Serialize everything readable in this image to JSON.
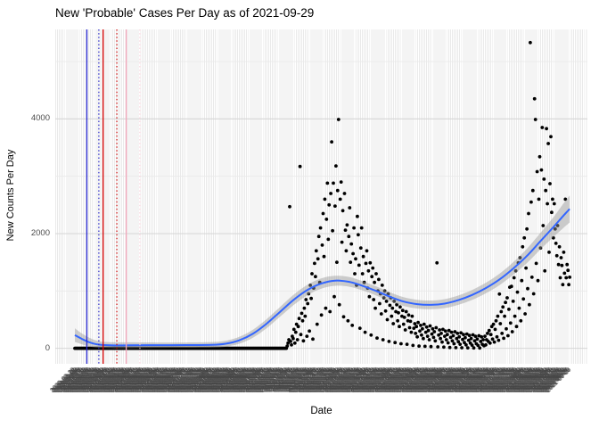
{
  "title": "New 'Probable' Cases Per Day as of 2021-09-29",
  "axes": {
    "x_title": "Date",
    "y_title": "New Counts Per Day",
    "y_ticks": [
      0,
      2000,
      4000
    ],
    "y_minor_gridlines": [
      1000,
      3000,
      5000
    ],
    "y_range": [
      -270,
      5560
    ],
    "x_start_date": "2020-02-28",
    "x_end_date": "2021-09-29",
    "x_num_days": 581,
    "x_tick_label_angle": 45,
    "x_tick_label_frequency": "daily"
  },
  "style_colors": {
    "point": "#000000",
    "smooth_line": "#3366FF",
    "ribbon": "rgba(150,150,150,0.45)",
    "grid_major": "#d6d6d6",
    "grid_minor": "#e9e9e9",
    "axis_text": "#4d4d4d",
    "tick_label_text": "#474747",
    "title_text": "#000000"
  },
  "chart_data": {
    "type": "scatter",
    "description": "New probable COVID-19 cases per day (one black point per date) with loess smooth fit and confidence ribbon, plus vertical reference lines in early 2020.",
    "zero_run_days": [
      0,
      247
    ],
    "points": [
      [
        248,
        40
      ],
      [
        249,
        90
      ],
      [
        250,
        150
      ],
      [
        251,
        2470
      ],
      [
        252,
        120
      ],
      [
        253,
        60
      ],
      [
        254,
        210
      ],
      [
        255,
        170
      ],
      [
        256,
        330
      ],
      [
        257,
        90
      ],
      [
        258,
        280
      ],
      [
        259,
        420
      ],
      [
        260,
        150
      ],
      [
        261,
        380
      ],
      [
        262,
        520
      ],
      [
        263,
        3170
      ],
      [
        264,
        240
      ],
      [
        265,
        610
      ],
      [
        266,
        480
      ],
      [
        267,
        130
      ],
      [
        268,
        700
      ],
      [
        269,
        560
      ],
      [
        270,
        850
      ],
      [
        271,
        210
      ],
      [
        272,
        780
      ],
      [
        273,
        950
      ],
      [
        274,
        300
      ],
      [
        275,
        1100
      ],
      [
        276,
        870
      ],
      [
        277,
        1300
      ],
      [
        278,
        160
      ],
      [
        279,
        1050
      ],
      [
        280,
        1480
      ],
      [
        281,
        1250
      ],
      [
        282,
        1700
      ],
      [
        283,
        420
      ],
      [
        284,
        1560
      ],
      [
        285,
        1950
      ],
      [
        286,
        1150
      ],
      [
        287,
        2100
      ],
      [
        288,
        580
      ],
      [
        289,
        1800
      ],
      [
        290,
        2350
      ],
      [
        291,
        1600
      ],
      [
        292,
        2600
      ],
      [
        293,
        700
      ],
      [
        294,
        2250
      ],
      [
        295,
        2880
      ],
      [
        296,
        1900
      ],
      [
        297,
        2500
      ],
      [
        298,
        640
      ],
      [
        299,
        2700
      ],
      [
        300,
        3600
      ],
      [
        301,
        2050
      ],
      [
        302,
        2880
      ],
      [
        303,
        900
      ],
      [
        304,
        2480
      ],
      [
        305,
        3180
      ],
      [
        306,
        1500
      ],
      [
        307,
        2750
      ],
      [
        308,
        3990
      ],
      [
        309,
        760
      ],
      [
        310,
        2600
      ],
      [
        311,
        2900
      ],
      [
        312,
        1850
      ],
      [
        313,
        2400
      ],
      [
        314,
        550
      ],
      [
        315,
        2700
      ],
      [
        316,
        2060
      ],
      [
        317,
        1700
      ],
      [
        318,
        2150
      ],
      [
        319,
        480
      ],
      [
        320,
        1950
      ],
      [
        321,
        2450
      ],
      [
        322,
        1500
      ],
      [
        323,
        1820
      ],
      [
        324,
        400
      ],
      [
        325,
        1650
      ],
      [
        326,
        2100
      ],
      [
        327,
        1300
      ],
      [
        328,
        1560
      ],
      [
        329,
        1100
      ],
      [
        330,
        2300
      ],
      [
        331,
        1980
      ],
      [
        332,
        1450
      ],
      [
        333,
        350
      ],
      [
        334,
        1750
      ],
      [
        335,
        2100
      ],
      [
        336,
        1300
      ],
      [
        337,
        1600
      ],
      [
        338,
        1150
      ],
      [
        339,
        280
      ],
      [
        340,
        1480
      ],
      [
        341,
        1700
      ],
      [
        342,
        1050
      ],
      [
        343,
        1350
      ],
      [
        344,
        900
      ],
      [
        345,
        1490
      ],
      [
        346,
        230
      ],
      [
        347,
        1250
      ],
      [
        348,
        1400
      ],
      [
        349,
        850
      ],
      [
        350,
        1150
      ],
      [
        351,
        700
      ],
      [
        352,
        1300
      ],
      [
        353,
        180
      ],
      [
        354,
        1000
      ],
      [
        355,
        1200
      ],
      [
        356,
        780
      ],
      [
        357,
        950
      ],
      [
        358,
        600
      ],
      [
        359,
        1100
      ],
      [
        360,
        150
      ],
      [
        361,
        880
      ],
      [
        362,
        1000
      ],
      [
        363,
        650
      ],
      [
        364,
        820
      ],
      [
        365,
        500
      ],
      [
        366,
        950
      ],
      [
        367,
        120
      ],
      [
        368,
        750
      ],
      [
        369,
        880
      ],
      [
        370,
        560
      ],
      [
        371,
        700
      ],
      [
        372,
        430
      ],
      [
        373,
        820
      ],
      [
        374,
        100
      ],
      [
        375,
        640
      ],
      [
        376,
        760
      ],
      [
        377,
        480
      ],
      [
        378,
        620
      ],
      [
        379,
        380
      ],
      [
        380,
        720
      ],
      [
        381,
        80
      ],
      [
        382,
        560
      ],
      [
        383,
        660
      ],
      [
        384,
        420
      ],
      [
        385,
        540
      ],
      [
        386,
        320
      ],
      [
        387,
        640
      ],
      [
        388,
        70
      ],
      [
        389,
        480
      ],
      [
        390,
        580
      ],
      [
        391,
        360
      ],
      [
        392,
        470
      ],
      [
        393,
        280
      ],
      [
        394,
        560
      ],
      [
        395,
        50
      ],
      [
        396,
        350
      ],
      [
        397,
        430
      ],
      [
        398,
        260
      ],
      [
        399,
        380
      ],
      [
        400,
        200
      ],
      [
        401,
        450
      ],
      [
        402,
        40
      ],
      [
        403,
        300
      ],
      [
        404,
        400
      ],
      [
        405,
        230
      ],
      [
        406,
        340
      ],
      [
        407,
        170
      ],
      [
        408,
        420
      ],
      [
        409,
        35
      ],
      [
        410,
        280
      ],
      [
        411,
        370
      ],
      [
        412,
        210
      ],
      [
        413,
        310
      ],
      [
        414,
        150
      ],
      [
        415,
        390
      ],
      [
        416,
        30
      ],
      [
        417,
        250
      ],
      [
        418,
        340
      ],
      [
        419,
        190
      ],
      [
        420,
        290
      ],
      [
        421,
        130
      ],
      [
        422,
        360
      ],
      [
        423,
        1490
      ],
      [
        424,
        25
      ],
      [
        425,
        230
      ],
      [
        426,
        320
      ],
      [
        427,
        170
      ],
      [
        428,
        260
      ],
      [
        429,
        110
      ],
      [
        430,
        330
      ],
      [
        431,
        20
      ],
      [
        432,
        210
      ],
      [
        433,
        300
      ],
      [
        434,
        150
      ],
      [
        435,
        240
      ],
      [
        436,
        95
      ],
      [
        437,
        310
      ],
      [
        438,
        15
      ],
      [
        439,
        190
      ],
      [
        440,
        280
      ],
      [
        441,
        130
      ],
      [
        442,
        220
      ],
      [
        443,
        80
      ],
      [
        444,
        290
      ],
      [
        445,
        12
      ],
      [
        446,
        170
      ],
      [
        447,
        260
      ],
      [
        448,
        115
      ],
      [
        449,
        200
      ],
      [
        450,
        70
      ],
      [
        451,
        270
      ],
      [
        452,
        10
      ],
      [
        453,
        155
      ],
      [
        454,
        240
      ],
      [
        455,
        100
      ],
      [
        456,
        185
      ],
      [
        457,
        60
      ],
      [
        458,
        250
      ],
      [
        459,
        8
      ],
      [
        460,
        140
      ],
      [
        461,
        225
      ],
      [
        462,
        90
      ],
      [
        463,
        170
      ],
      [
        464,
        55
      ],
      [
        465,
        235
      ],
      [
        466,
        6
      ],
      [
        467,
        130
      ],
      [
        468,
        210
      ],
      [
        469,
        80
      ],
      [
        470,
        160
      ],
      [
        471,
        50
      ],
      [
        472,
        220
      ],
      [
        473,
        5
      ],
      [
        474,
        120
      ],
      [
        475,
        200
      ],
      [
        476,
        70
      ],
      [
        477,
        150
      ],
      [
        478,
        45
      ],
      [
        479,
        210
      ],
      [
        480,
        60
      ],
      [
        481,
        150
      ],
      [
        482,
        260
      ],
      [
        483,
        120
      ],
      [
        484,
        310
      ],
      [
        485,
        90
      ],
      [
        486,
        240
      ],
      [
        487,
        380
      ],
      [
        488,
        160
      ],
      [
        489,
        420
      ],
      [
        490,
        110
      ],
      [
        491,
        330
      ],
      [
        492,
        480
      ],
      [
        493,
        200
      ],
      [
        494,
        560
      ],
      [
        495,
        140
      ],
      [
        496,
        945
      ],
      [
        497,
        430
      ],
      [
        498,
        640
      ],
      [
        499,
        260
      ],
      [
        500,
        720
      ],
      [
        501,
        175
      ],
      [
        502,
        560
      ],
      [
        503,
        800
      ],
      [
        504,
        340
      ],
      [
        505,
        880
      ],
      [
        506,
        220
      ],
      [
        507,
        680
      ],
      [
        508,
        1065
      ],
      [
        509,
        440
      ],
      [
        510,
        1080
      ],
      [
        511,
        290
      ],
      [
        512,
        820
      ],
      [
        513,
        1230
      ],
      [
        514,
        560
      ],
      [
        515,
        1350
      ],
      [
        516,
        380
      ],
      [
        517,
        980
      ],
      [
        518,
        1490
      ],
      [
        519,
        700
      ],
      [
        520,
        1580
      ],
      [
        521,
        480
      ],
      [
        522,
        1180
      ],
      [
        523,
        1770
      ],
      [
        524,
        860
      ],
      [
        525,
        1925
      ],
      [
        526,
        600
      ],
      [
        527,
        1400
      ],
      [
        528,
        2080
      ],
      [
        529,
        1040
      ],
      [
        530,
        2350
      ],
      [
        531,
        760
      ],
      [
        532,
        5330
      ],
      [
        533,
        2550
      ],
      [
        534,
        1240
      ],
      [
        535,
        2750
      ],
      [
        536,
        950
      ],
      [
        537,
        4350
      ],
      [
        538,
        3990
      ],
      [
        539,
        1480
      ],
      [
        540,
        3080
      ],
      [
        541,
        1180
      ],
      [
        542,
        2600
      ],
      [
        543,
        3340
      ],
      [
        544,
        1750
      ],
      [
        545,
        3110
      ],
      [
        546,
        3850
      ],
      [
        547,
        2140
      ],
      [
        548,
        2950
      ],
      [
        549,
        1350
      ],
      [
        550,
        2750
      ],
      [
        551,
        3830
      ],
      [
        552,
        2520
      ],
      [
        553,
        3570
      ],
      [
        554,
        1675
      ],
      [
        555,
        2870
      ],
      [
        556,
        3690
      ],
      [
        557,
        2370
      ],
      [
        558,
        2600
      ],
      [
        559,
        1925
      ],
      [
        560,
        2520
      ],
      [
        561,
        2080
      ],
      [
        562,
        1830
      ],
      [
        563,
        1615
      ],
      [
        564,
        2140
      ],
      [
        565,
        1460
      ],
      [
        566,
        1770
      ],
      [
        567,
        1230
      ],
      [
        568,
        1580
      ],
      [
        569,
        1445
      ],
      [
        570,
        1110
      ],
      [
        571,
        1675
      ],
      [
        572,
        1310
      ],
      [
        573,
        2600
      ],
      [
        574,
        1230
      ],
      [
        575,
        1460
      ],
      [
        576,
        1360
      ],
      [
        577,
        1110
      ],
      [
        578,
        1240
      ]
    ],
    "smooth_format": [
      "day",
      "fit",
      "lower",
      "upper"
    ],
    "smooth": [
      [
        0,
        230,
        110,
        350
      ],
      [
        8,
        165,
        70,
        260
      ],
      [
        16,
        110,
        35,
        190
      ],
      [
        24,
        75,
        15,
        140
      ],
      [
        32,
        58,
        5,
        115
      ],
      [
        48,
        50,
        0,
        105
      ],
      [
        64,
        52,
        2,
        105
      ],
      [
        96,
        55,
        8,
        102
      ],
      [
        128,
        56,
        10,
        102
      ],
      [
        160,
        60,
        14,
        108
      ],
      [
        176,
        80,
        28,
        132
      ],
      [
        192,
        140,
        80,
        200
      ],
      [
        208,
        255,
        185,
        325
      ],
      [
        224,
        430,
        350,
        510
      ],
      [
        240,
        640,
        555,
        725
      ],
      [
        256,
        850,
        760,
        940
      ],
      [
        272,
        1020,
        930,
        1110
      ],
      [
        288,
        1130,
        1040,
        1220
      ],
      [
        304,
        1180,
        1090,
        1265
      ],
      [
        320,
        1160,
        1075,
        1245
      ],
      [
        336,
        1090,
        1010,
        1170
      ],
      [
        352,
        1000,
        920,
        1080
      ],
      [
        368,
        900,
        822,
        978
      ],
      [
        384,
        815,
        738,
        892
      ],
      [
        400,
        770,
        694,
        846
      ],
      [
        416,
        758,
        682,
        834
      ],
      [
        432,
        780,
        702,
        858
      ],
      [
        448,
        840,
        758,
        922
      ],
      [
        464,
        930,
        843,
        1017
      ],
      [
        480,
        1050,
        958,
        1142
      ],
      [
        496,
        1200,
        1100,
        1300
      ],
      [
        512,
        1390,
        1280,
        1500
      ],
      [
        528,
        1610,
        1485,
        1735
      ],
      [
        544,
        1870,
        1725,
        2015
      ],
      [
        560,
        2130,
        1955,
        2305
      ],
      [
        570,
        2300,
        2090,
        2510
      ],
      [
        578,
        2430,
        2195,
        2665
      ]
    ],
    "vlines": [
      {
        "day": 14,
        "color": "#2222CC",
        "style": "solid"
      },
      {
        "day": 28,
        "color": "#2222CC",
        "style": "dotted"
      },
      {
        "day": 33,
        "color": "#D40000",
        "style": "solid"
      },
      {
        "day": 49,
        "color": "#D40000",
        "style": "dotted"
      },
      {
        "day": 60,
        "color": "#F2A7BB",
        "style": "solid"
      },
      {
        "day": 76,
        "color": "#F6C9D4",
        "style": "dotted"
      }
    ]
  }
}
